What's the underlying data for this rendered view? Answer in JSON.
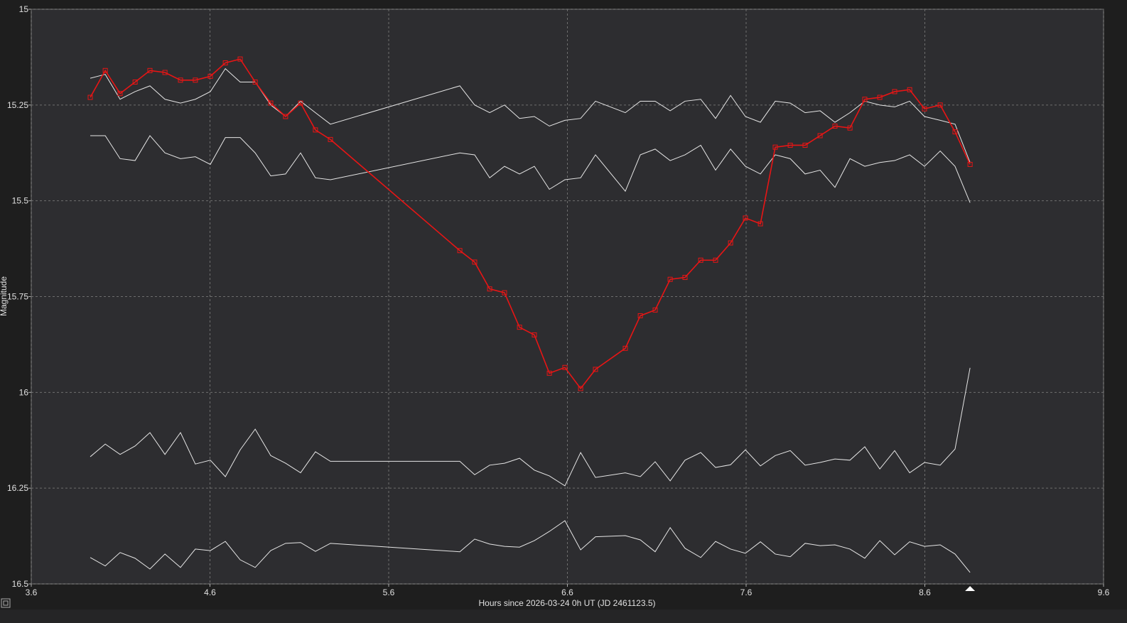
{
  "chart_data": {
    "type": "line",
    "x_label": "Hours since 2026-03-24 0h UT (JD 2461123.5)",
    "y_label": "Magnitude",
    "xlim": [
      3.6,
      9.6
    ],
    "xticks": [
      3.6,
      4.6,
      5.6,
      6.6,
      7.6,
      8.6,
      9.6
    ],
    "ylim": [
      15,
      16.5
    ],
    "yticks": [
      15,
      15.25,
      15.5,
      15.75,
      16,
      16.25,
      16.5
    ],
    "y_inverted": true,
    "grid": true,
    "x": [
      3.93,
      4.014,
      4.097,
      4.181,
      4.264,
      4.348,
      4.435,
      4.518,
      4.602,
      4.686,
      4.769,
      4.853,
      4.94,
      5.023,
      5.107,
      5.19,
      5.274,
      5.998,
      6.081,
      6.165,
      6.248,
      6.332,
      6.415,
      6.499,
      6.586,
      6.674,
      6.757,
      6.924,
      7.008,
      7.091,
      7.175,
      7.258,
      7.346,
      7.429,
      7.513,
      7.596,
      7.68,
      7.763,
      7.847,
      7.93,
      8.014,
      8.097,
      8.181,
      8.264,
      8.348,
      8.431,
      8.515,
      8.598,
      8.686,
      8.769,
      8.853
    ],
    "series": [
      {
        "color": "#e81515",
        "markers": true,
        "values": [
          15.23,
          15.16,
          15.22,
          15.19,
          15.16,
          15.165,
          15.185,
          15.185,
          15.175,
          15.14,
          15.13,
          15.19,
          15.245,
          15.28,
          15.245,
          15.315,
          15.34,
          15.63,
          15.66,
          15.73,
          15.74,
          15.83,
          15.85,
          15.95,
          15.935,
          15.99,
          15.94,
          15.885,
          15.8,
          15.785,
          15.705,
          15.7,
          15.655,
          15.655,
          15.61,
          15.545,
          15.56,
          15.36,
          15.355,
          15.355,
          15.33,
          15.305,
          15.31,
          15.235,
          15.23,
          15.215,
          15.21,
          15.26,
          15.25,
          15.32,
          15.405
        ]
      },
      {
        "color": "#e6e6e6",
        "markers": false,
        "values": [
          15.18,
          15.17,
          15.235,
          15.215,
          15.2,
          15.235,
          15.245,
          15.235,
          15.215,
          15.155,
          15.19,
          15.19,
          15.25,
          15.28,
          15.24,
          15.27,
          15.3,
          15.2,
          15.25,
          15.27,
          15.25,
          15.285,
          15.28,
          15.305,
          15.29,
          15.285,
          15.24,
          15.27,
          15.24,
          15.24,
          15.265,
          15.24,
          15.235,
          15.285,
          15.225,
          15.28,
          15.295,
          15.24,
          15.245,
          15.27,
          15.265,
          15.295,
          15.27,
          15.24,
          15.25,
          15.255,
          15.24,
          15.28,
          15.29,
          15.3,
          15.4
        ]
      },
      {
        "color": "#e6e6e6",
        "markers": false,
        "values": [
          15.33,
          15.33,
          15.39,
          15.395,
          15.33,
          15.375,
          15.39,
          15.385,
          15.405,
          15.335,
          15.335,
          15.375,
          15.435,
          15.43,
          15.375,
          15.44,
          15.445,
          15.375,
          15.38,
          15.44,
          15.41,
          15.43,
          15.41,
          15.47,
          15.445,
          15.44,
          15.38,
          15.475,
          15.38,
          15.365,
          15.395,
          15.38,
          15.355,
          15.42,
          15.365,
          15.41,
          15.43,
          15.38,
          15.39,
          15.43,
          15.42,
          15.465,
          15.39,
          15.41,
          15.4,
          15.395,
          15.38,
          15.41,
          15.37,
          15.41,
          15.505
        ]
      },
      {
        "color": "#e6e6e6",
        "markers": false,
        "values": [
          16.168,
          16.135,
          16.162,
          16.14,
          16.105,
          16.162,
          16.105,
          16.187,
          16.177,
          16.22,
          16.15,
          16.096,
          16.165,
          16.185,
          16.21,
          16.155,
          16.18,
          16.18,
          16.215,
          16.19,
          16.185,
          16.172,
          16.203,
          16.218,
          16.244,
          16.157,
          16.222,
          16.21,
          16.22,
          16.181,
          16.231,
          16.177,
          16.157,
          16.196,
          16.189,
          16.15,
          16.192,
          16.165,
          16.152,
          16.19,
          16.183,
          16.174,
          16.177,
          16.142,
          16.2,
          16.152,
          16.21,
          16.183,
          16.19,
          16.148,
          15.936
        ]
      },
      {
        "color": "#e6e6e6",
        "markers": false,
        "values": [
          16.431,
          16.453,
          16.418,
          16.433,
          16.461,
          16.422,
          16.457,
          16.409,
          16.413,
          16.389,
          16.437,
          16.457,
          16.413,
          16.394,
          16.392,
          16.415,
          16.394,
          16.416,
          16.383,
          16.396,
          16.402,
          16.404,
          16.387,
          16.363,
          16.335,
          16.411,
          16.377,
          16.374,
          16.385,
          16.416,
          16.353,
          16.407,
          16.431,
          16.389,
          16.409,
          16.42,
          16.39,
          16.422,
          16.429,
          16.394,
          16.4,
          16.398,
          16.409,
          16.433,
          16.387,
          16.424,
          16.39,
          16.402,
          16.398,
          16.422,
          16.47
        ]
      }
    ]
  }
}
